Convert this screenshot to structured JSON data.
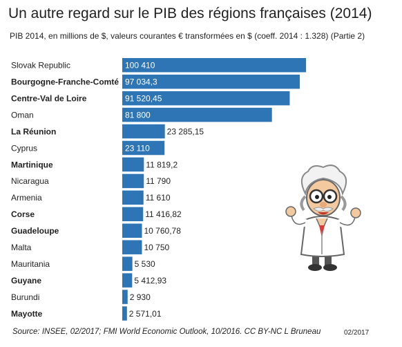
{
  "title": "Un autre regard sur le PIB des régions françaises (2014)",
  "subtitle": "PIB 2014, en millions de $, valeurs courantes € transformées en $ (coeff. 2014 : 1.328) (Partie 2)",
  "source": "Source: INSEE, 02/2017; FMI World Economic Outlook, 10/2016. CC BY-NC L Bruneau",
  "date": "02/2017",
  "colors": {
    "bar": "#2e75b6",
    "text_inside": "#ffffff",
    "text_outside": "#222222"
  },
  "mascot": "cartoon-professor-illustration",
  "chart_data": {
    "type": "bar",
    "orientation": "horizontal",
    "categories": [
      "Slovak Republic",
      "Bourgogne-Franche-Comté",
      "Centre-Val de Loire",
      "Oman",
      "La Réunion",
      "Cyprus",
      "Martinique",
      "Nicaragua",
      "Armenia",
      "Corse",
      "Guadeloupe",
      "Malta",
      "Mauritania",
      "Guyane",
      "Burundi",
      "Mayotte"
    ],
    "values": [
      100410,
      97034.3,
      91520.45,
      81800,
      23285.15,
      23110,
      11819.2,
      11790,
      11610,
      11416.82,
      10760.78,
      10750,
      5530,
      5412.93,
      2930,
      2571.01
    ],
    "value_labels": [
      "100 410",
      "97 034,3",
      "91 520,45",
      "81 800",
      "23 285,15",
      "23 110",
      "11 819,2",
      "11 790",
      "11 610",
      "11 416,82",
      "10 760,78",
      "10 750",
      "5 530",
      "5 412,93",
      "2 930",
      "2 571,01"
    ],
    "bold": [
      false,
      true,
      true,
      false,
      true,
      false,
      true,
      false,
      false,
      true,
      true,
      false,
      false,
      true,
      false,
      true
    ],
    "title": "Un autre regard sur le PIB des régions françaises (2014)",
    "xlim": [
      0,
      100410
    ],
    "grid": false,
    "legend": "none"
  }
}
